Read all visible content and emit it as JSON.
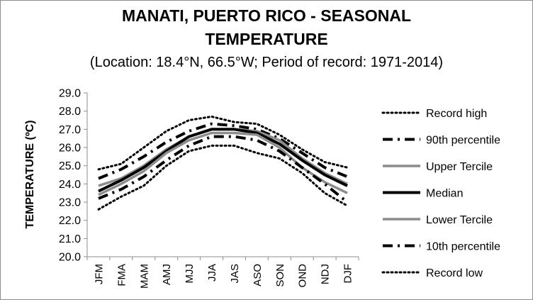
{
  "title_line1": "MANATI, PUERTO RICO - SEASONAL",
  "title_line2": "TEMPERATURE",
  "subtitle": "(Location: 18.4°N, 66.5°W; Period of record: 1971-2014)",
  "chart_data": {
    "type": "line",
    "title": "MANATI, PUERTO RICO - SEASONAL TEMPERATURE",
    "subtitle": "(Location: 18.4°N, 66.5°W; Period of record: 1971-2014)",
    "xlabel": "",
    "ylabel": "TEMPERATURE (ºC)",
    "ylim": [
      20.0,
      29.0
    ],
    "yticks": [
      "20.0",
      "21.0",
      "22.0",
      "23.0",
      "24.0",
      "25.0",
      "26.0",
      "27.0",
      "28.0",
      "29.0"
    ],
    "grid": false,
    "legend_position": "right",
    "categories": [
      "JFM",
      "FMA",
      "MAM",
      "AMJ",
      "MJJ",
      "JJA",
      "JAS",
      "ASO",
      "SON",
      "OND",
      "NDJ",
      "DJF"
    ],
    "series": [
      {
        "name": "Record high",
        "style": "dotted",
        "color": "#000000",
        "values": [
          24.8,
          25.1,
          26.0,
          26.9,
          27.5,
          27.7,
          27.4,
          27.3,
          26.7,
          25.9,
          25.2,
          24.9
        ]
      },
      {
        "name": "90th percentile",
        "style": "dashdot",
        "color": "#000000",
        "values": [
          24.3,
          24.8,
          25.5,
          26.3,
          26.9,
          27.3,
          27.2,
          27.0,
          26.5,
          25.7,
          24.9,
          24.4
        ]
      },
      {
        "name": "Upper Tercile",
        "style": "solid",
        "color": "#8c8c8c",
        "values": [
          23.9,
          24.3,
          25.0,
          25.9,
          26.6,
          27.0,
          27.0,
          26.9,
          26.4,
          25.4,
          24.6,
          24.0
        ]
      },
      {
        "name": "Median",
        "style": "solid",
        "color": "#000000",
        "values": [
          23.6,
          24.2,
          24.9,
          25.8,
          26.6,
          27.0,
          27.0,
          26.8,
          26.2,
          25.3,
          24.5,
          23.9
        ]
      },
      {
        "name": "Lower Tercile",
        "style": "solid",
        "color": "#8c8c8c",
        "values": [
          23.4,
          24.0,
          24.7,
          25.7,
          26.4,
          26.8,
          26.8,
          26.7,
          26.0,
          24.9,
          24.1,
          23.5
        ]
      },
      {
        "name": "10th percentile",
        "style": "dashdot",
        "color": "#000000",
        "values": [
          23.2,
          23.7,
          24.4,
          25.3,
          26.1,
          26.6,
          26.6,
          26.4,
          25.8,
          24.9,
          24.0,
          23.0
        ]
      },
      {
        "name": "Record low",
        "style": "dotted",
        "color": "#000000",
        "values": [
          22.6,
          23.3,
          23.9,
          25.0,
          25.8,
          26.1,
          26.1,
          25.7,
          25.4,
          24.6,
          23.5,
          22.8
        ]
      }
    ]
  }
}
